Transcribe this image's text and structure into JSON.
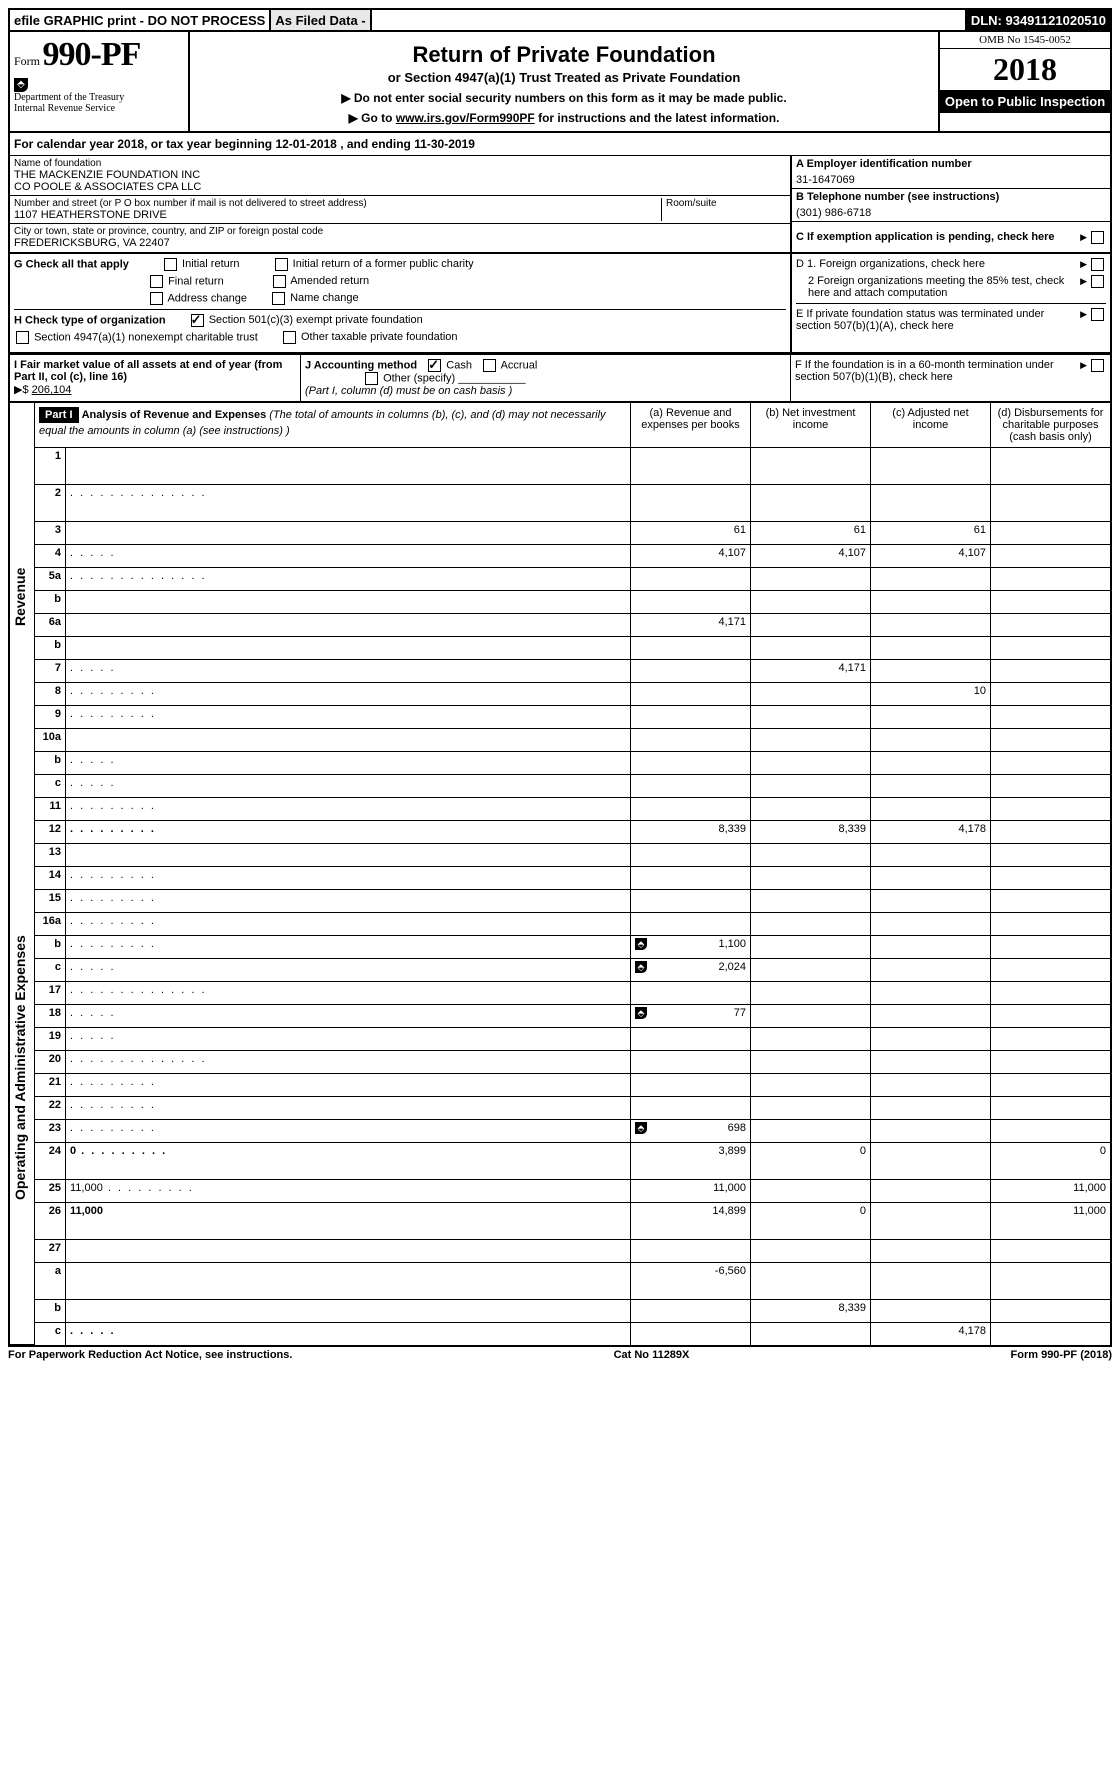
{
  "top": {
    "efile": "efile GRAPHIC print - DO NOT PROCESS",
    "asfiled": "As Filed Data -",
    "dln_label": "DLN:",
    "dln": "93491121020510"
  },
  "header": {
    "form_label": "Form",
    "form_no": "990-PF",
    "dept1": "Department of the Treasury",
    "dept2": "Internal Revenue Service",
    "title": "Return of Private Foundation",
    "subtitle": "or Section 4947(a)(1) Trust Treated as Private Foundation",
    "instr1": "▶ Do not enter social security numbers on this form as it may be made public.",
    "instr2_pre": "▶ Go to ",
    "instr2_link": "www.irs.gov/Form990PF",
    "instr2_post": " for instructions and the latest information.",
    "omb": "OMB No 1545-0052",
    "year": "2018",
    "open": "Open to Public Inspection"
  },
  "cal": {
    "text_pre": "For calendar year 2018, or tax year beginning ",
    "begin": "12-01-2018",
    "text_mid": " , and ending ",
    "end": "11-30-2019"
  },
  "info": {
    "name_lbl": "Name of foundation",
    "name_l1": "THE MACKENZIE FOUNDATION INC",
    "name_l2": "CO POOLE & ASSOCIATES CPA LLC",
    "addr_lbl": "Number and street (or P O  box number if mail is not delivered to street address)",
    "addr_val": "1107 HEATHERSTONE DRIVE",
    "room_lbl": "Room/suite",
    "city_lbl": "City or town, state or province, country, and ZIP or foreign postal code",
    "city_val": "FREDERICKSBURG, VA  22407",
    "A_lbl": "A Employer identification number",
    "A_val": "31-1647069",
    "B_lbl": "B Telephone number (see instructions)",
    "B_val": "(301) 986-6718",
    "C_lbl": "C If exemption application is pending, check here"
  },
  "G": {
    "label": "G Check all that apply",
    "opts": [
      "Initial return",
      "Initial return of a former public charity",
      "Final return",
      "Amended return",
      "Address change",
      "Name change"
    ]
  },
  "H": {
    "label": "H Check type of organization",
    "opt1": "Section 501(c)(3) exempt private foundation",
    "opt2": "Section 4947(a)(1) nonexempt charitable trust",
    "opt3": "Other taxable private foundation"
  },
  "D": {
    "d1": "D 1. Foreign organizations, check here",
    "d2": "2  Foreign organizations meeting the 85% test, check here and attach computation",
    "E": "E  If private foundation status was terminated under section 507(b)(1)(A), check here",
    "F": "F  If the foundation is in a 60-month termination under section 507(b)(1)(B), check here"
  },
  "I": {
    "label": "I Fair market value of all assets at end of year (from Part II, col  (c), line 16)",
    "val_pre": "▶$ ",
    "val": "206,104"
  },
  "J": {
    "label": "J Accounting method",
    "cash": "Cash",
    "accrual": "Accrual",
    "other": "Other (specify)",
    "note": "(Part I, column (d) must be on cash basis )"
  },
  "part1": {
    "label": "Part I",
    "title": "Analysis of Revenue and Expenses",
    "note": "(The total of amounts in columns (b), (c), and (d) may not necessarily equal the amounts in column (a) (see instructions) )",
    "col_a": "(a)   Revenue and expenses per books",
    "col_b": "(b)  Net investment income",
    "col_c": "(c)  Adjusted net income",
    "col_d": "(d)  Disbursements for charitable purposes (cash basis only)",
    "side_rev": "Revenue",
    "side_exp": "Operating and Administrative Expenses"
  },
  "rows": [
    {
      "n": "1",
      "d": "",
      "a": "",
      "b": "",
      "c": "",
      "tall": true
    },
    {
      "n": "2",
      "d": "",
      "a": "",
      "b": "",
      "c": "",
      "dots": "lg",
      "tall": true,
      "noval": true
    },
    {
      "n": "3",
      "d": "",
      "a": "61",
      "b": "61",
      "c": "61"
    },
    {
      "n": "4",
      "d": "",
      "a": "4,107",
      "b": "4,107",
      "c": "4,107",
      "dots": "sm"
    },
    {
      "n": "5a",
      "d": "",
      "a": "",
      "b": "",
      "c": "",
      "dots": "lg"
    },
    {
      "n": "b",
      "d": "",
      "a": "",
      "b": "",
      "c": "",
      "noval": true
    },
    {
      "n": "6a",
      "d": "",
      "a": "4,171",
      "b": "",
      "c": ""
    },
    {
      "n": "b",
      "d": "",
      "a": "",
      "b": "",
      "c": "",
      "noval": true
    },
    {
      "n": "7",
      "d": "",
      "a": "",
      "b": "4,171",
      "c": "",
      "dots": "sm"
    },
    {
      "n": "8",
      "d": "",
      "a": "",
      "b": "",
      "c": "10",
      "dots": "md"
    },
    {
      "n": "9",
      "d": "",
      "a": "",
      "b": "",
      "c": "",
      "dots": "md"
    },
    {
      "n": "10a",
      "d": "",
      "a": "",
      "b": "",
      "c": "",
      "noval": true
    },
    {
      "n": "b",
      "d": "",
      "a": "",
      "b": "",
      "c": "",
      "dots": "sm",
      "noval": true
    },
    {
      "n": "c",
      "d": "",
      "a": "",
      "b": "",
      "c": "",
      "dots": "sm"
    },
    {
      "n": "11",
      "d": "",
      "a": "",
      "b": "",
      "c": "",
      "dots": "md"
    },
    {
      "n": "12",
      "d": "",
      "a": "8,339",
      "b": "8,339",
      "c": "4,178",
      "dots": "md",
      "bold": true
    },
    {
      "n": "13",
      "d": "",
      "a": "",
      "b": "",
      "c": ""
    },
    {
      "n": "14",
      "d": "",
      "a": "",
      "b": "",
      "c": "",
      "dots": "md"
    },
    {
      "n": "15",
      "d": "",
      "a": "",
      "b": "",
      "c": "",
      "dots": "md"
    },
    {
      "n": "16a",
      "d": "",
      "a": "",
      "b": "",
      "c": "",
      "dots": "md"
    },
    {
      "n": "b",
      "d": "",
      "a": "1,100",
      "b": "",
      "c": "",
      "dots": "md",
      "peel": true
    },
    {
      "n": "c",
      "d": "",
      "a": "2,024",
      "b": "",
      "c": "",
      "dots": "sm",
      "peel": true
    },
    {
      "n": "17",
      "d": "",
      "a": "",
      "b": "",
      "c": "",
      "dots": "lg"
    },
    {
      "n": "18",
      "d": "",
      "a": "77",
      "b": "",
      "c": "",
      "dots": "sm",
      "peel": true
    },
    {
      "n": "19",
      "d": "",
      "a": "",
      "b": "",
      "c": "",
      "dots": "sm"
    },
    {
      "n": "20",
      "d": "",
      "a": "",
      "b": "",
      "c": "",
      "dots": "lg"
    },
    {
      "n": "21",
      "d": "",
      "a": "",
      "b": "",
      "c": "",
      "dots": "md"
    },
    {
      "n": "22",
      "d": "",
      "a": "",
      "b": "",
      "c": "",
      "dots": "md"
    },
    {
      "n": "23",
      "d": "",
      "a": "698",
      "b": "",
      "c": "",
      "dots": "md",
      "peel": true
    },
    {
      "n": "24",
      "d": "0",
      "a": "3,899",
      "b": "0",
      "c": "",
      "dots": "md",
      "bold": true,
      "tall": true
    },
    {
      "n": "25",
      "d": "11,000",
      "a": "11,000",
      "b": "",
      "c": "",
      "dots": "md"
    },
    {
      "n": "26",
      "d": "11,000",
      "a": "14,899",
      "b": "0",
      "c": "",
      "bold": true,
      "tall": true
    },
    {
      "n": "27",
      "d": "",
      "a": "",
      "b": "",
      "c": "",
      "noval": true
    },
    {
      "n": "a",
      "d": "",
      "a": "-6,560",
      "b": "",
      "c": "",
      "bold": true,
      "tall": true
    },
    {
      "n": "b",
      "d": "",
      "a": "",
      "b": "8,339",
      "c": "",
      "bold": true
    },
    {
      "n": "c",
      "d": "",
      "a": "",
      "b": "",
      "c": "4,178",
      "bold": true,
      "dots": "sm"
    }
  ],
  "footer": {
    "left": "For Paperwork Reduction Act Notice, see instructions.",
    "mid": "Cat  No  11289X",
    "right": "Form 990-PF (2018)"
  },
  "style": {
    "revenue_rows_end": 15,
    "expense_rows_end": 31
  }
}
